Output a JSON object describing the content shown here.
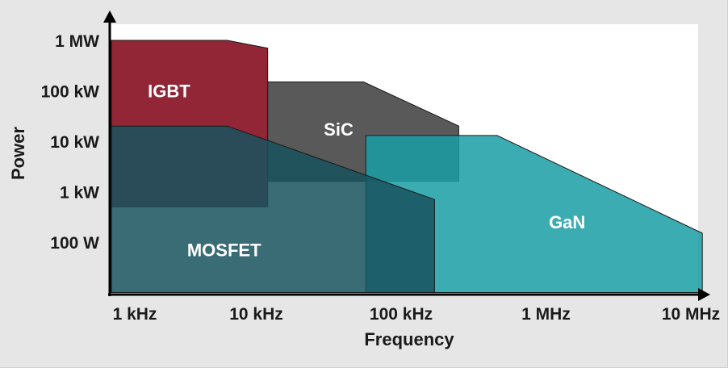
{
  "chart_data": {
    "type": "area",
    "xlabel": "Frequency",
    "ylabel": "Power",
    "x_scale": "log",
    "y_scale": "log",
    "x_ticks": [
      {
        "value": "1 kHz",
        "hz": 1000
      },
      {
        "value": "10 kHz",
        "hz": 10000
      },
      {
        "value": "100 kHz",
        "hz": 100000
      },
      {
        "value": "1 MHz",
        "hz": 1000000
      },
      {
        "value": "10 MHz",
        "hz": 10000000
      }
    ],
    "y_ticks": [
      {
        "value": "100 W",
        "w": 100
      },
      {
        "value": "1 kW",
        "w": 1000
      },
      {
        "value": "10 kW",
        "w": 10000
      },
      {
        "value": "100 kW",
        "w": 100000
      },
      {
        "value": "1 MW",
        "w": 1000000
      }
    ],
    "xlim_hz": [
      1000,
      14000000
    ],
    "ylim_w": [
      10,
      2000000
    ],
    "series": [
      {
        "name": "IGBT",
        "color": "#8c1a2b",
        "opacity": 0.95,
        "outline_hz_w": [
          [
            1000,
            1000000
          ],
          [
            6300,
            1000000
          ],
          [
            12000,
            700000
          ],
          [
            12000,
            500
          ],
          [
            1000,
            500
          ]
        ]
      },
      {
        "name": "SiC",
        "color": "#474747",
        "opacity": 0.9,
        "outline_hz_w": [
          [
            12000,
            150000
          ],
          [
            55000,
            150000
          ],
          [
            250000,
            20000
          ],
          [
            250000,
            1600
          ],
          [
            12000,
            1600
          ]
        ]
      },
      {
        "name": "GaN",
        "color": "#1a9ea6",
        "opacity": 0.85,
        "outline_hz_w": [
          [
            57000,
            13000
          ],
          [
            460000,
            13000
          ],
          [
            12000000,
            150
          ],
          [
            12000000,
            10
          ],
          [
            57000,
            10
          ]
        ]
      },
      {
        "name": "MOSFET",
        "color": "#17525e",
        "opacity": 0.85,
        "outline_hz_w": [
          [
            1000,
            20000
          ],
          [
            6300,
            20000
          ],
          [
            170000,
            700
          ],
          [
            170000,
            10
          ],
          [
            1000,
            10
          ]
        ]
      }
    ]
  }
}
